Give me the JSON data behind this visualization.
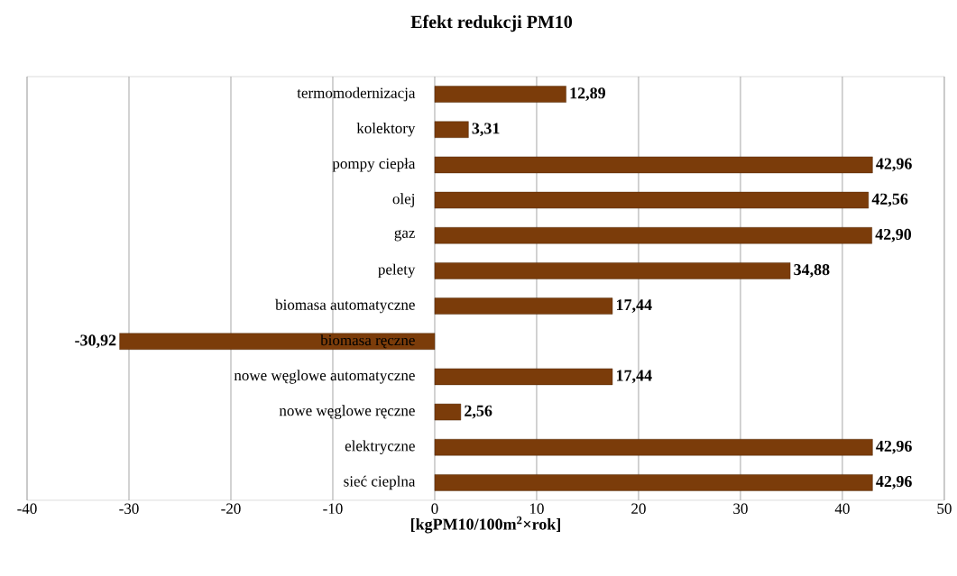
{
  "chart_data": {
    "type": "bar",
    "orientation": "horizontal",
    "title": "Efekt redukcji PM10",
    "xlabel": "[kgPM10/100m$^{2}$×rok]",
    "categories": [
      "termomodernizacja",
      "kolektory",
      "pompy ciepła",
      "olej",
      "gaz",
      "pelety",
      "biomasa automatyczne",
      "biomasa ręczne",
      "nowe węglowe automatyczne",
      "nowe węglowe ręczne",
      "elektryczne",
      "sieć cieplna"
    ],
    "values": [
      12.89,
      3.31,
      42.96,
      42.56,
      42.9,
      34.88,
      17.44,
      -30.92,
      17.44,
      2.56,
      42.96,
      42.96
    ],
    "value_labels": [
      "12,89",
      "3,31",
      "42,96",
      "42,56",
      "42,90",
      "34,88",
      "17,44",
      "-30,92",
      "17,44",
      "2,56",
      "42,96",
      "42,96"
    ],
    "color": "#7b3c0a",
    "xlim": [
      -40,
      50
    ],
    "xticks": [
      -40,
      -30,
      -20,
      -10,
      0,
      10,
      20,
      30,
      40,
      50
    ],
    "grid": "x"
  }
}
